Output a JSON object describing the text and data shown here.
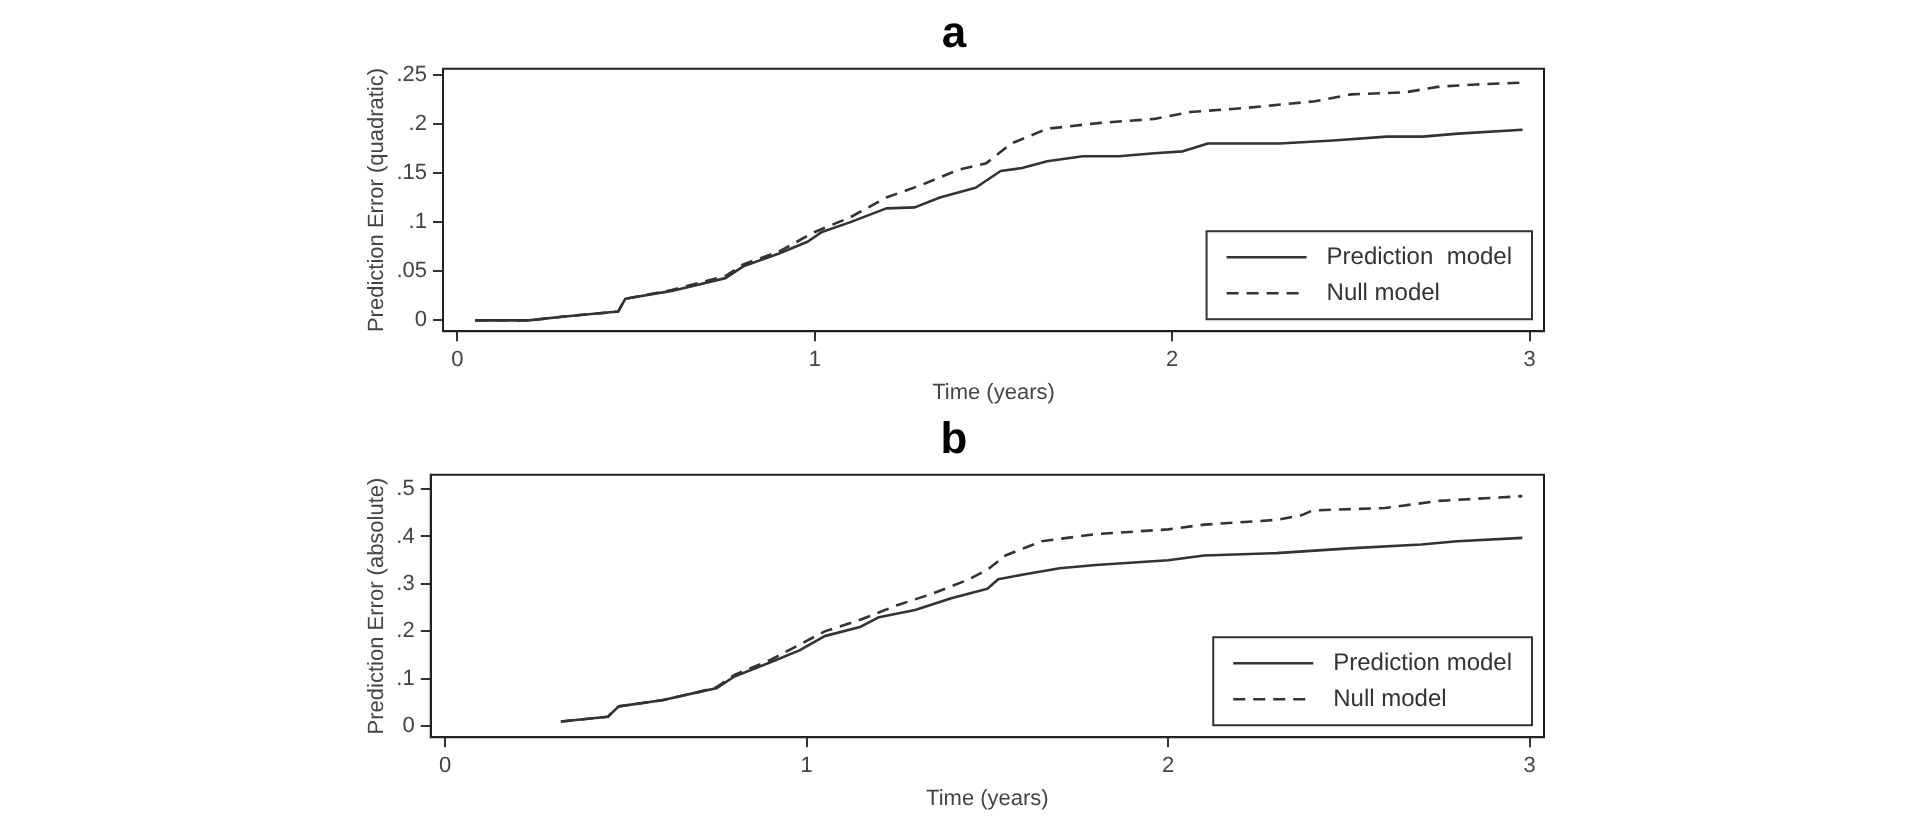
{
  "chart_data": [
    {
      "type": "line",
      "title": "a",
      "xlabel": "Time (years)",
      "ylabel": "Prediction Error (quadratic)",
      "xlim": [
        -0.04,
        3.04
      ],
      "xticks": [
        0,
        1,
        2,
        3
      ],
      "ylim": [
        -0.011,
        0.256
      ],
      "yticks": [
        {
          "value": 0,
          "label": "0"
        },
        {
          "value": 0.05,
          "label": ".05"
        },
        {
          "value": 0.1,
          "label": ".1"
        },
        {
          "value": 0.15,
          "label": ".15"
        },
        {
          "value": 0.2,
          "label": ".2"
        },
        {
          "value": 0.25,
          "label": ".25"
        }
      ],
      "legend": "bottom right",
      "grid": false,
      "marker": "none",
      "series": [
        {
          "name": "Prediction  model",
          "color": "#333333",
          "line_style": "solid",
          "x": [
            0.05,
            0.2,
            0.3,
            0.45,
            0.47,
            0.6,
            0.75,
            0.8,
            0.9,
            0.98,
            1.02,
            1.1,
            1.2,
            1.28,
            1.35,
            1.45,
            1.52,
            1.58,
            1.65,
            1.75,
            1.85,
            1.95,
            2.03,
            2.1,
            2.3,
            2.45,
            2.6,
            2.7,
            2.8,
            2.98
          ],
          "values": [
            0,
            0,
            0.004,
            0.009,
            0.022,
            0.03,
            0.043,
            0.055,
            0.068,
            0.08,
            0.09,
            0.1,
            0.114,
            0.115,
            0.125,
            0.135,
            0.152,
            0.155,
            0.162,
            0.167,
            0.167,
            0.17,
            0.172,
            0.18,
            0.18,
            0.183,
            0.187,
            0.187,
            0.19,
            0.194
          ]
        },
        {
          "name": "Null model",
          "color": "#333333",
          "line_style": "dashed",
          "x": [
            0.05,
            0.2,
            0.3,
            0.45,
            0.47,
            0.6,
            0.75,
            0.8,
            0.9,
            1.0,
            1.1,
            1.2,
            1.3,
            1.4,
            1.48,
            1.55,
            1.65,
            1.8,
            1.95,
            2.05,
            2.2,
            2.4,
            2.5,
            2.65,
            2.75,
            2.85,
            2.98
          ],
          "values": [
            0,
            0,
            0.004,
            0.009,
            0.022,
            0.031,
            0.045,
            0.057,
            0.07,
            0.09,
            0.105,
            0.125,
            0.138,
            0.153,
            0.16,
            0.18,
            0.195,
            0.201,
            0.205,
            0.212,
            0.216,
            0.223,
            0.23,
            0.232,
            0.238,
            0.24,
            0.242
          ]
        }
      ]
    },
    {
      "type": "line",
      "title": "b",
      "xlabel": "Time (years)",
      "ylabel": "Prediction Error (absolute)",
      "xlim": [
        -0.04,
        3.04
      ],
      "xticks": [
        0,
        1,
        2,
        3
      ],
      "ylim": [
        -0.023,
        0.53
      ],
      "yticks": [
        {
          "value": 0,
          "label": "0"
        },
        {
          "value": 0.1,
          "label": ".1"
        },
        {
          "value": 0.2,
          "label": ".2"
        },
        {
          "value": 0.3,
          "label": ".3"
        },
        {
          "value": 0.4,
          "label": ".4"
        },
        {
          "value": 0.5,
          "label": ".5"
        }
      ],
      "legend": "bottom right",
      "grid": false,
      "marker": "none",
      "series": [
        {
          "name": "Prediction model",
          "color": "#333333",
          "line_style": "solid",
          "x": [
            0.32,
            0.45,
            0.48,
            0.6,
            0.7,
            0.75,
            0.8,
            0.9,
            0.98,
            1.05,
            1.15,
            1.2,
            1.3,
            1.4,
            1.5,
            1.53,
            1.6,
            1.7,
            1.8,
            2.0,
            2.1,
            2.3,
            2.5,
            2.7,
            2.8,
            2.98
          ],
          "values": [
            0.01,
            0.02,
            0.042,
            0.055,
            0.072,
            0.08,
            0.105,
            0.135,
            0.16,
            0.19,
            0.21,
            0.23,
            0.245,
            0.27,
            0.29,
            0.31,
            0.32,
            0.333,
            0.34,
            0.35,
            0.36,
            0.365,
            0.375,
            0.383,
            0.39,
            0.397
          ]
        },
        {
          "name": "Null model",
          "color": "#333333",
          "line_style": "dashed",
          "x": [
            0.32,
            0.45,
            0.48,
            0.6,
            0.7,
            0.75,
            0.8,
            0.9,
            1.0,
            1.05,
            1.15,
            1.25,
            1.35,
            1.45,
            1.5,
            1.55,
            1.65,
            1.8,
            2.0,
            2.1,
            2.3,
            2.37,
            2.4,
            2.6,
            2.75,
            2.98
          ],
          "values": [
            0.01,
            0.02,
            0.042,
            0.055,
            0.072,
            0.082,
            0.108,
            0.14,
            0.18,
            0.2,
            0.225,
            0.255,
            0.28,
            0.31,
            0.33,
            0.36,
            0.39,
            0.405,
            0.415,
            0.425,
            0.435,
            0.445,
            0.455,
            0.46,
            0.475,
            0.485
          ]
        }
      ]
    }
  ]
}
